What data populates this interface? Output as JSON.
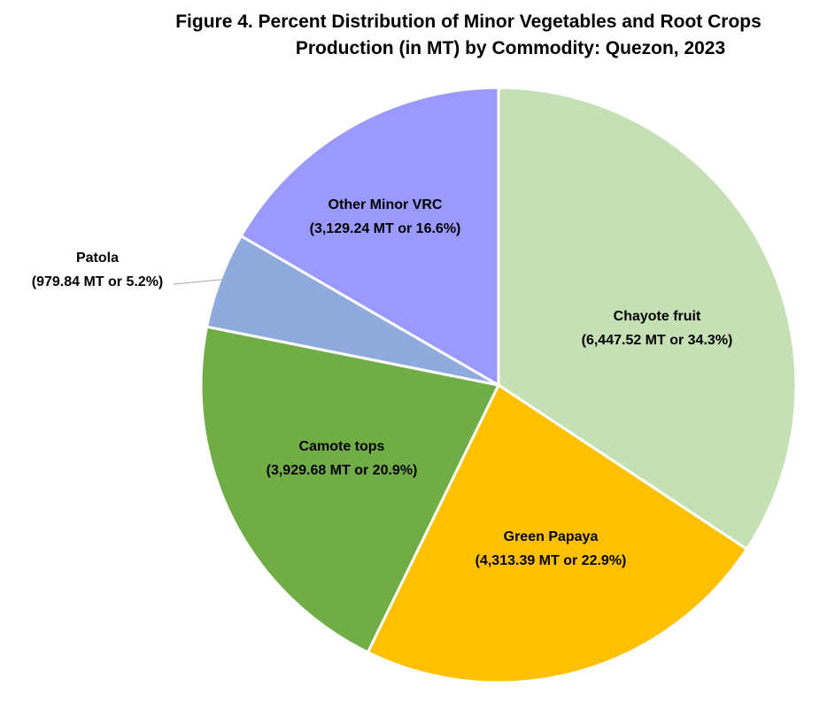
{
  "chart_data": {
    "type": "pie",
    "title_line1": "Figure 4. Percent Distribution of Minor Vegetables and Root Crops",
    "title_line2": "Production (in MT) by Commodity: Quezon, 2023",
    "slices": [
      {
        "name": "Chayote fruit",
        "value": 6447.52,
        "label": "(6,447.52 MT or 34.3%)",
        "color": "#c5e0b4"
      },
      {
        "name": "Green Papaya",
        "value": 4313.39,
        "label": "(4,313.39 MT or 22.9%)",
        "color": "#ffc000"
      },
      {
        "name": "Camote tops",
        "value": 3929.68,
        "label": "(3,929.68 MT or 20.9%)",
        "color": "#70ad47"
      },
      {
        "name": "Patola",
        "value": 979.84,
        "label": "(979.84 MT or 5.2%)",
        "color": "#8faadc"
      },
      {
        "name": "Other Minor VRC",
        "value": 3129.24,
        "label": "(3,129.24 MT or 16.6%)",
        "color": "#9999ff"
      }
    ]
  }
}
